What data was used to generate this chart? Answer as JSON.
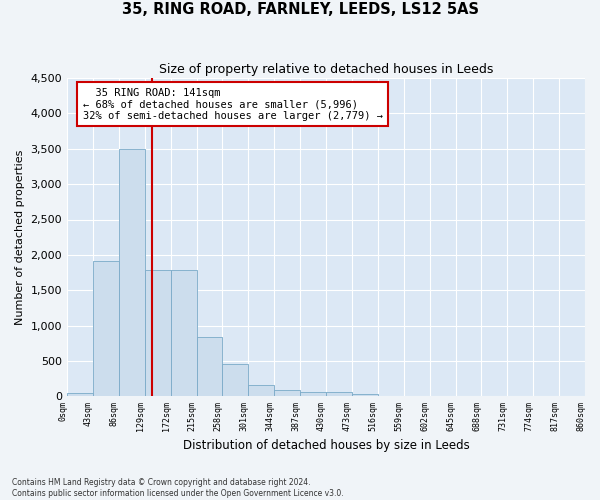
{
  "title": "35, RING ROAD, FARNLEY, LEEDS, LS12 5AS",
  "subtitle": "Size of property relative to detached houses in Leeds",
  "xlabel": "Distribution of detached houses by size in Leeds",
  "ylabel": "Number of detached properties",
  "bin_labels": [
    "0sqm",
    "43sqm",
    "86sqm",
    "129sqm",
    "172sqm",
    "215sqm",
    "258sqm",
    "301sqm",
    "344sqm",
    "387sqm",
    "430sqm",
    "473sqm",
    "516sqm",
    "559sqm",
    "602sqm",
    "645sqm",
    "688sqm",
    "731sqm",
    "774sqm",
    "817sqm",
    "860sqm"
  ],
  "bar_values": [
    50,
    1920,
    3500,
    1780,
    1780,
    840,
    450,
    155,
    95,
    60,
    55,
    35,
    0,
    0,
    0,
    0,
    0,
    0,
    0,
    0
  ],
  "bar_color": "#ccdded",
  "bar_edge_color": "#7aaac8",
  "vline_color": "#cc0000",
  "annotation_text": "  35 RING ROAD: 141sqm\n← 68% of detached houses are smaller (5,996)\n32% of semi-detached houses are larger (2,779) →",
  "annotation_box_color": "#ffffff",
  "annotation_box_edge": "#cc0000",
  "ylim": [
    0,
    4500
  ],
  "yticks": [
    0,
    500,
    1000,
    1500,
    2000,
    2500,
    3000,
    3500,
    4000,
    4500
  ],
  "footer_line1": "Contains HM Land Registry data © Crown copyright and database right 2024.",
  "footer_line2": "Contains public sector information licensed under the Open Government Licence v3.0.",
  "bg_color": "#dce8f5",
  "fig_color": "#f0f4f8",
  "grid_color": "#ffffff"
}
